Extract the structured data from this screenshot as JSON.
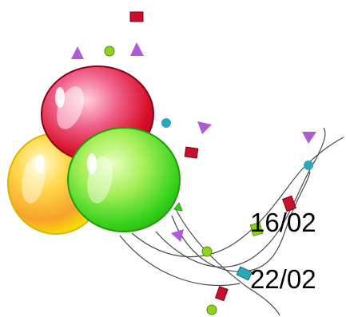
{
  "dates": [
    "16/02",
    "22/02"
  ],
  "balloons": [
    {
      "name": "yellow-balloon",
      "color": "#f5e600"
    },
    {
      "name": "red-balloon",
      "color": "#d8102a"
    },
    {
      "name": "green-balloon",
      "color": "#33d11b"
    }
  ],
  "confetti_colors": {
    "red": "#c8102e",
    "purple": "#b05bd6",
    "green": "#8cd41a",
    "cyan": "#2aa8b8"
  },
  "ribbon_color": "#4a4a4a"
}
